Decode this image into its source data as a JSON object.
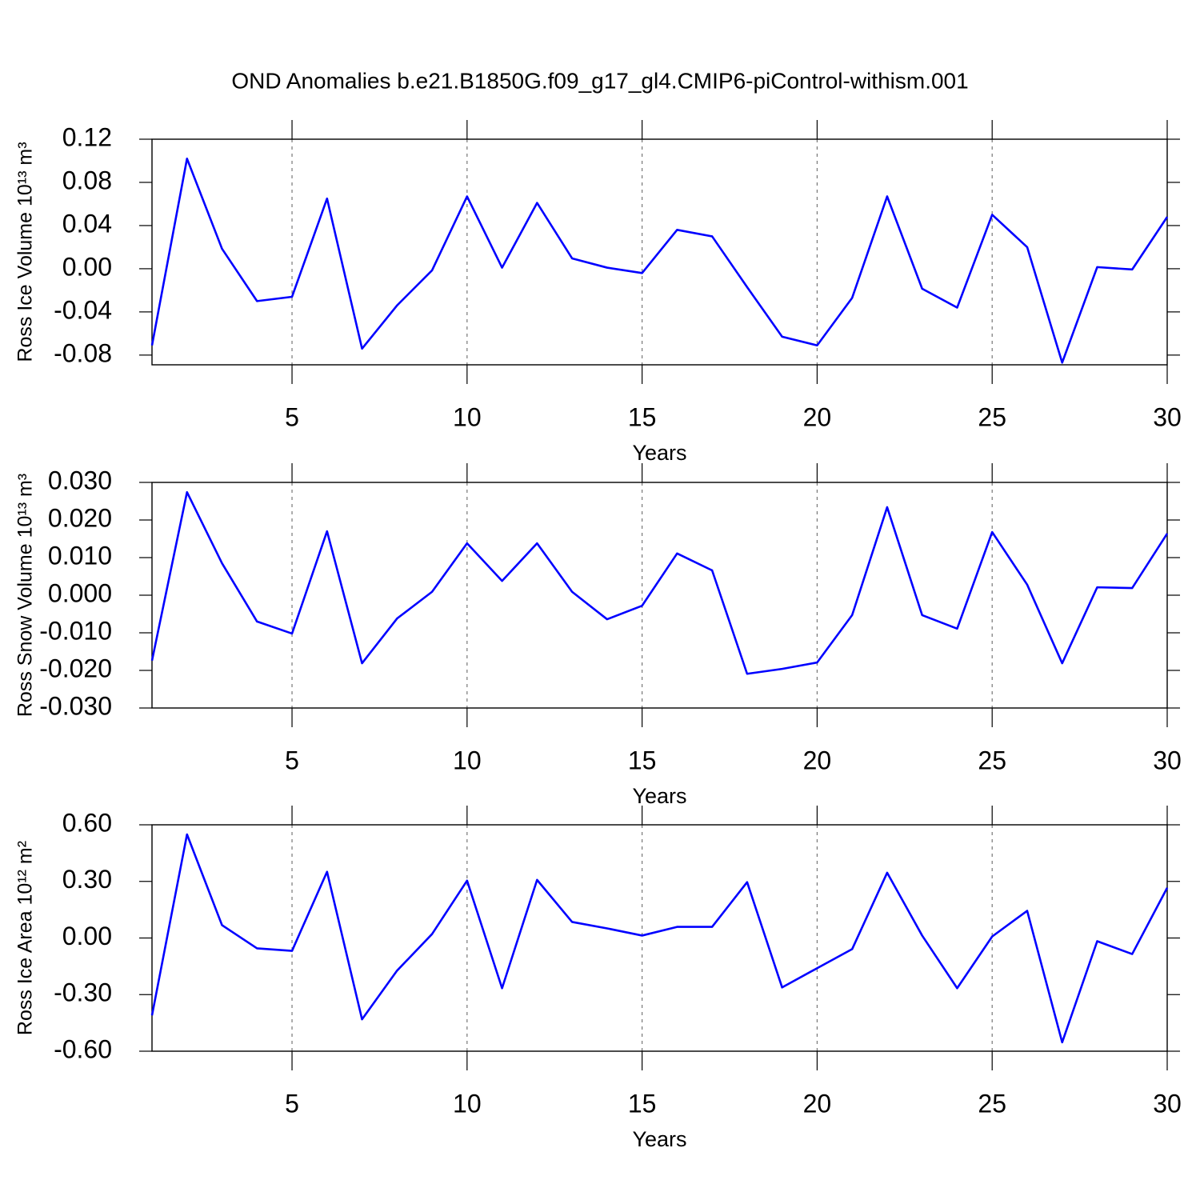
{
  "title": "OND Anomalies b.e21.B1850G.f09_g17_gl4.CMIP6-piControl-withism.001",
  "chart_data": [
    {
      "type": "line",
      "xlabel": "Years",
      "ylabel": "Ross Ice Volume 10¹³ m³",
      "color": "#0000ff",
      "xgrid": true,
      "x": [
        1,
        2,
        3,
        4,
        5,
        6,
        7,
        8,
        9,
        10,
        11,
        12,
        13,
        14,
        15,
        16,
        17,
        18,
        19,
        20,
        21,
        22,
        23,
        24,
        25,
        26,
        27,
        28,
        29,
        30
      ],
      "values": [
        -0.071,
        0.102,
        0.0185,
        -0.03,
        -0.026,
        0.065,
        -0.074,
        -0.034,
        -0.0015,
        0.067,
        0.001,
        0.061,
        0.0096,
        0.001,
        -0.004,
        0.036,
        0.03,
        -0.017,
        -0.063,
        -0.071,
        -0.027,
        0.067,
        -0.0185,
        -0.036,
        0.05,
        0.02,
        -0.087,
        0.0015,
        -0.0007,
        0.048
      ],
      "xlim": [
        1,
        30
      ],
      "xticks": [
        5,
        10,
        15,
        20,
        25,
        30
      ],
      "ylim": [
        -0.089,
        0.12
      ],
      "yticks": [
        0.12,
        0.08,
        0.04,
        {
          "value": 0,
          "label": "0.00"
        },
        -0.04,
        -0.08
      ]
    },
    {
      "type": "line",
      "xlabel": "Years",
      "ylabel": "Ross Snow Volume 10¹³ m³",
      "color": "#0000ff",
      "xgrid": true,
      "x": [
        1,
        2,
        3,
        4,
        5,
        6,
        7,
        8,
        9,
        10,
        11,
        12,
        13,
        14,
        15,
        16,
        17,
        18,
        19,
        20,
        21,
        22,
        23,
        24,
        25,
        26,
        27,
        28,
        29,
        30
      ],
      "values": [
        -0.0174,
        0.0274,
        0.0085,
        -0.007,
        -0.0102,
        0.017,
        -0.0181,
        -0.0062,
        0.0009,
        0.0138,
        0.0038,
        0.0138,
        0.0009,
        -0.0064,
        -0.0028,
        0.0111,
        0.0066,
        -0.0209,
        -0.0196,
        -0.0179,
        -0.0053,
        0.0234,
        -0.0053,
        -0.0089,
        0.0168,
        0.0028,
        -0.0181,
        0.0021,
        0.0019,
        0.0164
      ],
      "xlim": [
        1,
        30
      ],
      "xticks": [
        5,
        10,
        15,
        20,
        25,
        30
      ],
      "ylim": [
        -0.03,
        0.03
      ],
      "yticks": [
        {
          "value": 0.03,
          "label": "0.030"
        },
        {
          "value": 0.02,
          "label": "0.020"
        },
        {
          "value": 0.01,
          "label": "0.010"
        },
        {
          "value": 0,
          "label": "0.000"
        },
        {
          "value": -0.01,
          "label": "-0.010"
        },
        {
          "value": -0.02,
          "label": "-0.020"
        },
        {
          "value": -0.03,
          "label": "-0.030"
        }
      ]
    },
    {
      "type": "line",
      "xlabel": "Years",
      "ylabel": "Ross Ice Area 10¹² m²",
      "color": "#0000ff",
      "xgrid": true,
      "x": [
        1,
        2,
        3,
        4,
        5,
        6,
        7,
        8,
        9,
        10,
        11,
        12,
        13,
        14,
        15,
        16,
        17,
        18,
        19,
        20,
        21,
        22,
        23,
        24,
        25,
        26,
        27,
        28,
        29,
        30
      ],
      "values": [
        -0.41,
        0.549,
        0.068,
        -0.055,
        -0.068,
        0.351,
        -0.431,
        -0.173,
        0.021,
        0.304,
        -0.266,
        0.308,
        0.085,
        0.051,
        0.013,
        0.059,
        0.059,
        0.296,
        -0.262,
        -0.16,
        -0.059,
        0.346,
        0.013,
        -0.266,
        0.008,
        0.144,
        -0.553,
        -0.017,
        -0.085,
        0.266
      ],
      "xlim": [
        1,
        30
      ],
      "xticks": [
        5,
        10,
        15,
        20,
        25,
        30
      ],
      "ylim": [
        -0.6,
        0.6
      ],
      "yticks": [
        {
          "value": 0.6,
          "label": "0.60"
        },
        {
          "value": 0.3,
          "label": "0.30"
        },
        {
          "value": 0,
          "label": "0.00"
        },
        {
          "value": -0.3,
          "label": "-0.30"
        },
        {
          "value": -0.6,
          "label": "-0.60"
        }
      ]
    }
  ]
}
